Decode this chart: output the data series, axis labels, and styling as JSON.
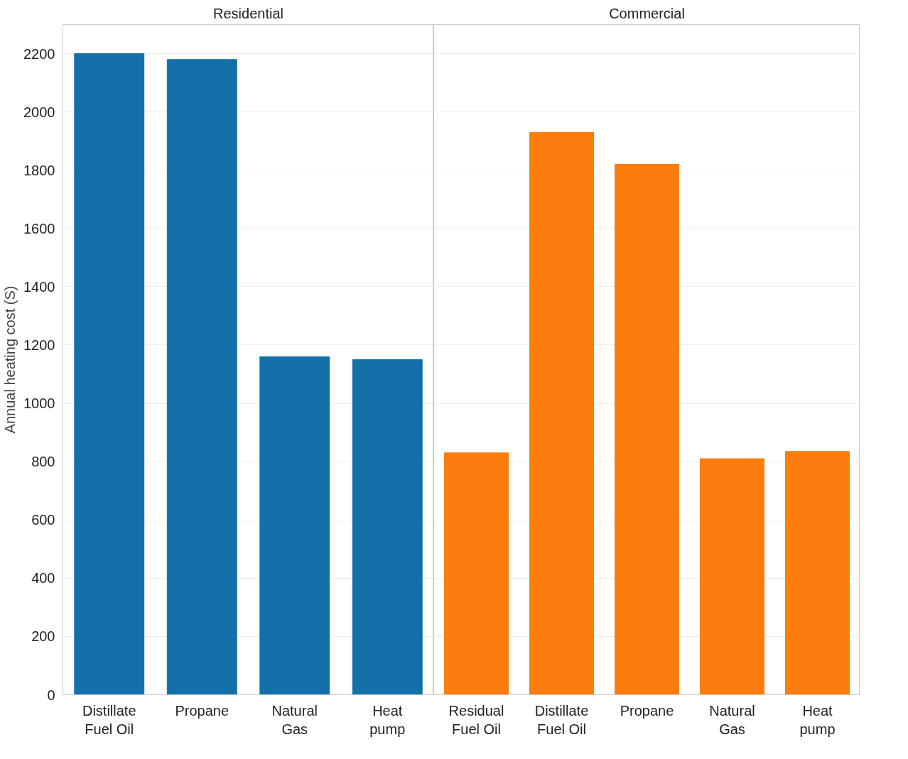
{
  "chart_data": [
    {
      "type": "bar",
      "title": "Residential",
      "ylabel": "Annual heating cost (S)",
      "categories": [
        "Distillate\nFuel Oil",
        "Propane",
        "Natural\nGas",
        "Heat\npump"
      ],
      "values": [
        2200,
        2180,
        1160,
        1150
      ],
      "color": "#1470a8",
      "ylim": [
        0,
        2300
      ],
      "yticks": [
        0,
        200,
        400,
        600,
        800,
        1000,
        1200,
        1400,
        1600,
        1800,
        2000,
        2200
      ],
      "grid": "y"
    },
    {
      "type": "bar",
      "title": "Commercial",
      "categories": [
        "Residual\nFuel Oil",
        "Distillate\nFuel Oil",
        "Propane",
        "Natural\nGas",
        "Heat\npump"
      ],
      "values": [
        830,
        1930,
        1820,
        810,
        835
      ],
      "color": "#fb7d0f",
      "ylim": [
        0,
        2300
      ],
      "yticks": [
        0,
        200,
        400,
        600,
        800,
        1000,
        1200,
        1400,
        1600,
        1800,
        2000,
        2200
      ],
      "grid": "y",
      "tick_labels": "x"
    }
  ]
}
